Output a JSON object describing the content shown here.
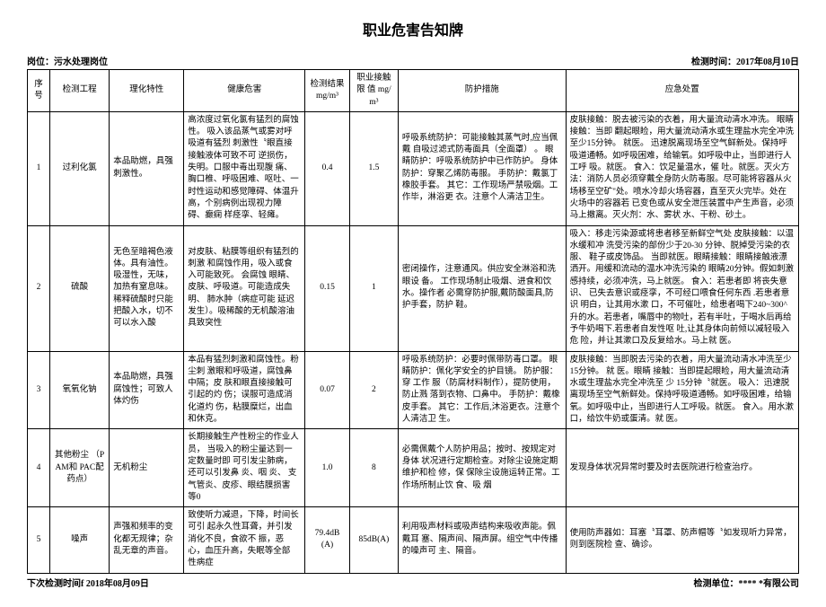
{
  "title": "职业危害告知牌",
  "header_left": "岗位：污水处理岗位",
  "header_right": "检测时间：2017年08月10日",
  "footer_left": "下次检测时间f 2018年08月09日",
  "footer_right": "检测单位：**** *有限公司",
  "columns": {
    "seq": "序号",
    "item": "检测工程",
    "phys": "理化特性",
    "health": "健康危害",
    "res": "检测结果 mg/m³",
    "lim": "职业接触限 值 mg/m³",
    "prot": "防护措施",
    "emer": "应急处置"
  },
  "rows": [
    {
      "seq": "1",
      "item": "过利化氯",
      "phys": "本品助燃，具强 刺激性。",
      "health": "高浓度过氧化氯有猛烈的腐蚀性。 吸入该品蒸气或雾对呼吸道有猛烈 刺激性〝眼直接接触液体可致不可 逆损伤，失明。口服中毒出现腹 痛、胸口椎、呼吸困难、呕吐、一时性运动和感觉障碍、体温升高，个别病例出现视力障 碍、癫痫 样痉挛、轻瘫。",
      "res": "0.4",
      "lim": "1.5",
      "prot": "呼吸系统防护：可能接触其蒸气时,应当佩戴 自吸过滤式防毒面具（全面罩） 。 眼睛防护：呼吸系统防护中已作防护。 身体防护：穿聚乙烯防毒服。 手防护：戴氯丁橡胶手套。 其它：工作现场严禁吸烟。工作毕，淋浴更 衣。注意个人清洁卫生。",
      "emer": "皮肤接触：脱去被污染的衣着，用大量流动清水冲洗。 眼睛接触：当即 翻起眼睑，用大量流动清水或生理盐水完全冲洗至少15分钟。 就医。 迅速脱离现场至空气鲜新处。保持呼吸道通畅。如呼吸困难，给输氧。如呼吸中止，当即进行人工呼 吸。就医。 食入：饮足量温水，催 吐。就医。灭火方法：消防人员必须穿戴全身防火防毒服。尽可能将容器从火 场移至空矿\"处。喷水冷却火场容器，直至灭火完毕。处在火场中的容器若 已变色或从安全泄压装置中产生声音，必须马上撤离。灭火剂：水、雾状 水、干粉、砂土。"
    },
    {
      "seq": "2",
      "item": "硫酸",
      "phys": "无色至暗褐色液体。具有油性。吸湿性，无味，加热有窒息味。 稀释硫酸时只能把酸入水，切不可以水入酸",
      "health": "对皮肤、粘膜等组织有猛烈的刺激 和腐蚀作用，吸入或食入可能致死。 会腐蚀 眼睛、皮肤、呼吸道。可能造成失明、 肺水肿（病症可能 延迟发生）。吸稀酸的无机酸溶油 具致突性",
      "res": "0.15",
      "lim": "1",
      "prot": "密闭操作，注意通风。供应安全淋浴和洗眼设 备。 工作现场制止吸烟、进食和饮水。操作者 必需穿防护服,戴防酸面具,防护手套，防护 鞋。",
      "emer": "吸入：移走污染源或将患者移至新鲜空气处 皮肤接触：以温水缓和冲 洗受污染的部份少于20-30 分钟、脱掉受污染的衣服、 鞋子或皮饰品。 当即就医。眼睛接触：眼睛接触液漂洒开。用缓和流动的温水冲洗污染的 眼睛20分钟。假如刺激感持续，必须冲洗，马上就医。 食入：若患者即 将丧失意识、 已失去意识或痉挛，不可经口喂食任何东西 .若患者意识 明白，让其用水漱 口，不可催吐，给患者喝下240~300^升的水。若患者，嘴唇中的物吐，若有半吐，于喝水后再给予牛奶喝下.若患者自发性呕 吐,让其身体向前倾以减轻吸入危 险，并让其漱口及反复给水。马上就 医。"
    },
    {
      "seq": "3",
      "item": "氧氧化钠",
      "phys": "本品助燃，具强 腐蚀性；可致人体灼伤",
      "health": "本品有猛烈刺激和腐蚀性。粉尘刺 激眼和呼吸道，腐蚀鼻中隔；皮 肤和眼直接接触可引起的灼 伤；误服可造成消化道灼 伤，粘膜糜烂，出血 和休克。",
      "res": "0.07",
      "lim": "2",
      "prot": "呼吸系统防护：必要时佩带防毒口罩。 眼睛防护：佩化学安全的护目镜。 防护服：穿 工作 服（防腐材料制作），提防使用，防止溅 落到衣物、口鼻中。 手防护：戴橡皮手套。 其它：工作后,沐浴更衣。注意个人清洁卫 生。",
      "emer": "皮肤接触：当即脱去污染的衣着，用大量流动清水冲洗至少15分钟。 就 医。眼睛 接触：当即提起眼睑，用大量流动清水或生理盐水完全冲洗至 少 15分钟〝就医。 吸入：迅速脱离现场至空气新鲜处。保持呼吸道通畅。如呼吸困难，给输氧。如呼吸中止，当即进行人工呼吸。就医。 食入。用水漱口，给饮牛奶或蛋清。就 医。"
    },
    {
      "seq": "4",
      "item": "其他粉尘 （PAM和 PAC配 药点）",
      "phys": "无机粉尘",
      "health": "长期接触生产性粉尘的作业人员， 当吸入的粉尘量达到一定数量时即 可引发尘肺病，还可以引发鼻 炎、咽 炎、 支气管炎、皮疹、眼结膜损害 等0",
      "res": "1.0",
      "lim": "8",
      "prot": "必需佩戴个人防护用品；按时、按规定对身体 状况进行定期检查。对除尘设施定期维护和检 修，保 保除尘设施运转正常。工作场所制止饮 食、吸 烟",
      "emer": "发现身体状况异常时要及时去医院进行检查治疗。"
    },
    {
      "seq": "5",
      "item": "噪声",
      "phys": "声强和频率的变化都无规律；杂乱无章的声音。",
      "health": "致使听力减退，下降，时间长可引 起永久性耳聋，并引发消化不良，食欲不 振，恶 心，血压升高，失眠等全部 性病症",
      "res": "79.4dB(A)",
      "lim": "85dB(A)",
      "prot": "利用吸声材料或吸声结构来吸收声能。佩戴耳 塞、隔声间、隔声屏。组空气中传播的噪声可 主、隔音。",
      "emer": "使用防声器如：耳塞〝耳罩、防声帽等〝如发现听力异常，则到医院检 查、确诊。"
    }
  ]
}
